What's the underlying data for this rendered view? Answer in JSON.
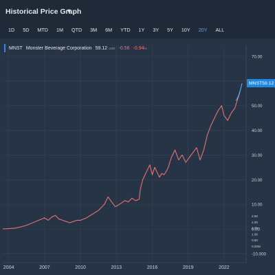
{
  "header": {
    "title": "Historical Price Graph",
    "dropdown_icon": "chevron-down-icon",
    "dropdown_glyph": "▼"
  },
  "tabs": [
    {
      "label": "1D",
      "active": false
    },
    {
      "label": "5D",
      "active": false
    },
    {
      "label": "MTD",
      "active": false
    },
    {
      "label": "1M",
      "active": false
    },
    {
      "label": "QTD",
      "active": false
    },
    {
      "label": "3M",
      "active": false
    },
    {
      "label": "6M",
      "active": false
    },
    {
      "label": "YTD",
      "active": false
    },
    {
      "label": "1Y",
      "active": false
    },
    {
      "label": "3Y",
      "active": false
    },
    {
      "label": "5Y",
      "active": false
    },
    {
      "label": "10Y",
      "active": false
    },
    {
      "label": "20Y",
      "active": true
    },
    {
      "label": "ALL",
      "active": false
    }
  ],
  "legend": {
    "symbol": "MNST",
    "name": "Monster Beverage Corporation",
    "price": "59.12",
    "currency": "USD",
    "change": "-0.56",
    "change_pct": "-0.94",
    "change_pct_unit": "%"
  },
  "price_tag": {
    "symbol": "MNST",
    "price": "59.12"
  },
  "colors": {
    "background": "#1f2937",
    "plot_background": "#263445",
    "line": "#e57373",
    "line_recent": "#42a5f5",
    "accent": "#1e88e5",
    "negative": "#f87171",
    "active_tab": "#60a5fa"
  },
  "chart_data": {
    "type": "line",
    "title": "",
    "xlabel": "",
    "ylabel": "",
    "x_ticks": [
      "2004",
      "2007",
      "2010",
      "2013",
      "2016",
      "2019",
      "2022"
    ],
    "x_range": [
      2003.5,
      2023.5
    ],
    "price_y_ticks": [
      "70.00",
      "60.00",
      "50.00",
      "40.00",
      "30.00",
      "20.00",
      "10.00",
      "0.00",
      "-10.000"
    ],
    "price_ylim": [
      -10,
      75
    ],
    "volume_y_ticks": [
      "2.50",
      "2.00",
      "1.50",
      "1.00",
      "0.50",
      "0.00M"
    ],
    "volume_ylim": [
      0,
      2.5
    ],
    "grid": true,
    "series": [
      {
        "values_x": [
          2003.5,
          2004.0,
          2004.5,
          2005.0,
          2005.5,
          2006.0,
          2006.5,
          2007.0,
          2007.3,
          2007.6,
          2007.9,
          2008.2,
          2008.5,
          2008.8,
          2009.1,
          2009.4,
          2009.7,
          2010.0,
          2010.5,
          2011.0,
          2011.5,
          2012.0,
          2012.3,
          2012.6,
          2012.9,
          2013.1,
          2013.4,
          2013.7,
          2014.0,
          2014.3,
          2014.6,
          2014.9,
          2015.0,
          2015.2,
          2015.4,
          2015.6,
          2015.8,
          2016.0,
          2016.2,
          2016.4,
          2016.6,
          2016.8,
          2017.0,
          2017.3,
          2017.6,
          2017.9,
          2018.2,
          2018.5,
          2018.8,
          2019.1,
          2019.4,
          2019.7,
          2020.0,
          2020.3,
          2020.6,
          2020.9,
          2021.2,
          2021.5,
          2021.8,
          2022.0,
          2022.3,
          2022.6,
          2022.9,
          2023.1,
          2023.3,
          2023.5
        ],
        "values_y": [
          0.0,
          0.1,
          0.3,
          0.8,
          1.5,
          2.5,
          3.5,
          4.5,
          3.5,
          4.8,
          5.5,
          4.0,
          3.5,
          3.0,
          2.5,
          3.0,
          3.5,
          3.5,
          4.5,
          6.0,
          7.5,
          10.0,
          13.0,
          11.0,
          9.0,
          9.5,
          10.5,
          11.5,
          11.0,
          12.5,
          11.5,
          12.0,
          16.0,
          20.0,
          22.0,
          24.0,
          26.0,
          22.0,
          25.0,
          23.0,
          21.0,
          22.5,
          22.0,
          24.5,
          29.0,
          32.0,
          28.0,
          30.0,
          27.0,
          29.0,
          31.0,
          33.0,
          28.0,
          32.0,
          38.0,
          42.0,
          45.0,
          48.0,
          50.0,
          46.0,
          44.0,
          47.0,
          49.0,
          52.0,
          55.0,
          59.12
        ]
      },
      {
        "name": "",
        "values_x": [
          2023.0,
          2023.2,
          2023.4,
          2023.5
        ],
        "values_y": [
          52.0,
          54.0,
          57.0,
          59.12
        ]
      }
    ]
  }
}
